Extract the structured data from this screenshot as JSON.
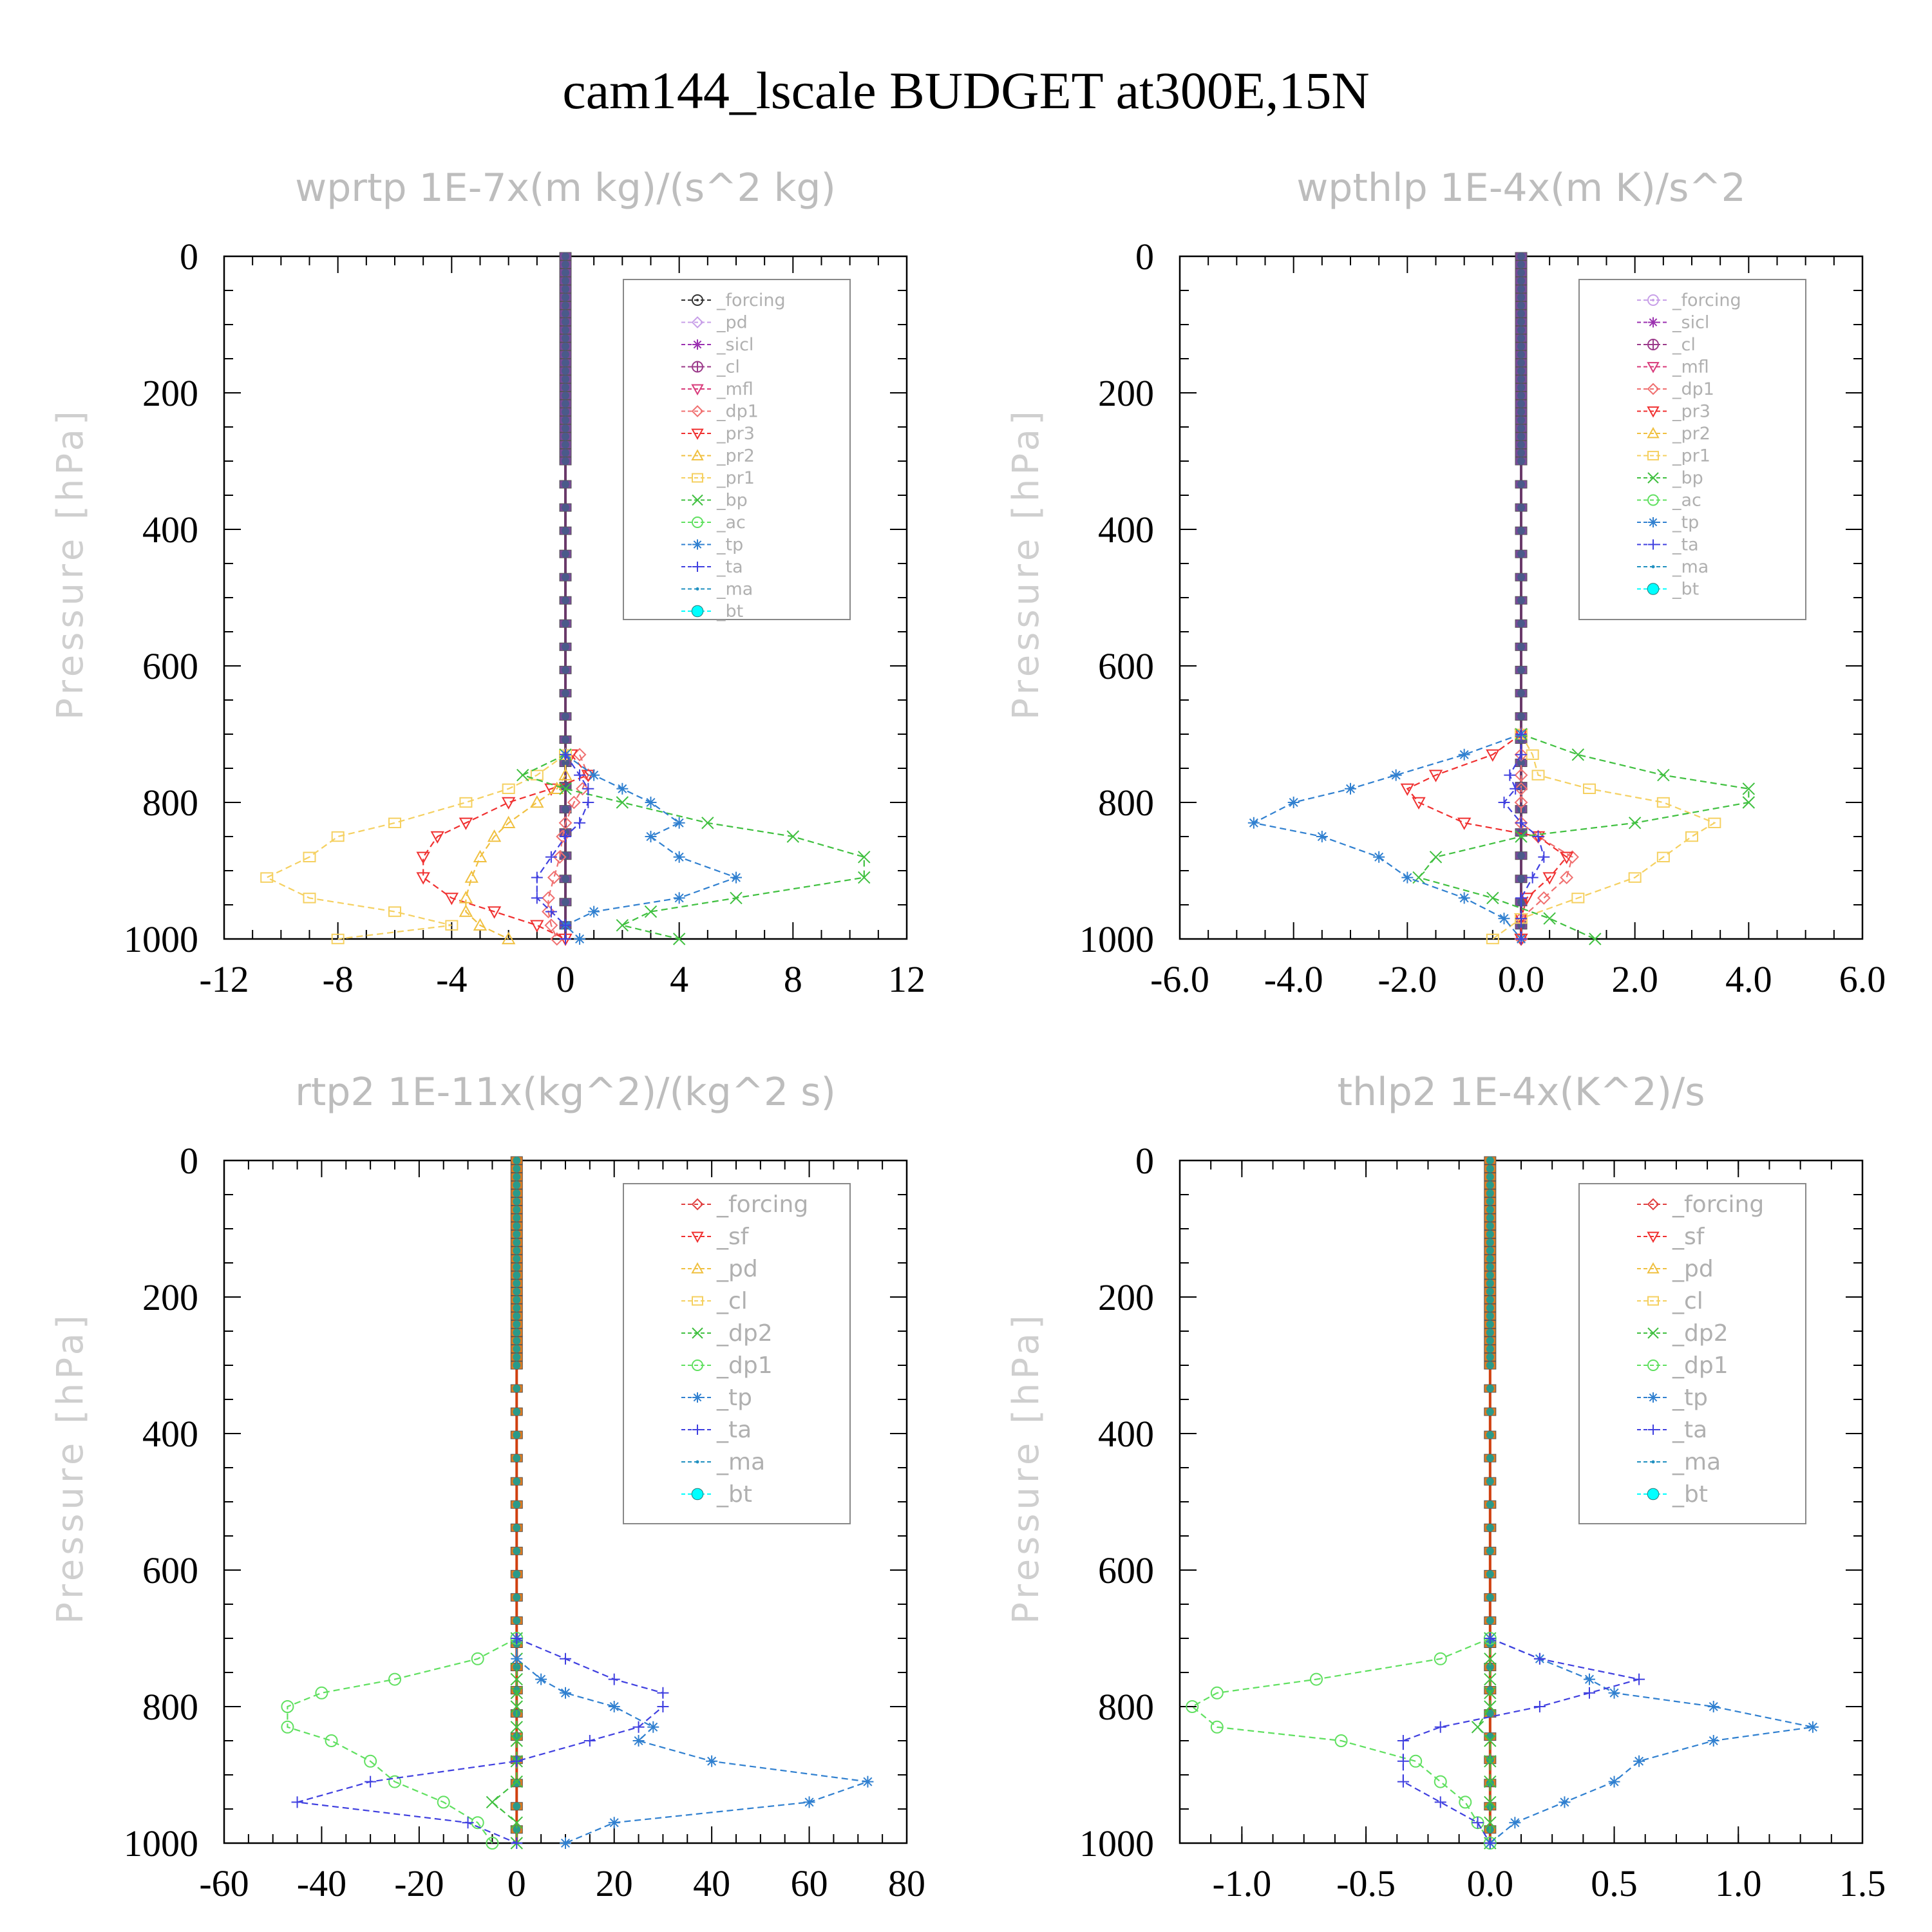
{
  "figure_title": "cam144_lscale  BUDGET at300E,15N",
  "chart_data": [
    {
      "type": "line",
      "title": "wprtp   1E-7x(m kg)/(s^2 kg)",
      "ylabel": "Pressure [hPa]",
      "xlim": [
        -12,
        12
      ],
      "ylim": [
        1000,
        0
      ],
      "y_inverted": true,
      "xticks": [
        "-12",
        "-8",
        "-4",
        "0",
        "4",
        "8",
        "12"
      ],
      "yticks": [
        "0",
        "200",
        "400",
        "600",
        "800",
        "1000"
      ],
      "grid": false,
      "legend_position": "top-right",
      "pressure": [
        730,
        760,
        780,
        800,
        830,
        850,
        880,
        910,
        940,
        960,
        980,
        1000
      ],
      "series": [
        {
          "name": "_forcing",
          "color": "#333333",
          "marker": "circle-dot",
          "values": [
            0,
            0,
            0,
            0,
            0,
            0,
            0,
            0,
            0,
            0,
            0,
            0
          ]
        },
        {
          "name": "_pd",
          "color": "#c8a0e8",
          "marker": "diamond",
          "values": [
            0,
            0,
            0,
            0,
            0,
            0,
            0,
            0,
            0,
            0,
            0,
            0
          ]
        },
        {
          "name": "_sicl",
          "color": "#9b30b0",
          "marker": "star",
          "values": [
            0,
            0,
            0,
            0,
            0,
            0,
            0,
            0,
            0,
            0,
            0,
            0
          ]
        },
        {
          "name": "_cl",
          "color": "#9b3a8a",
          "marker": "circle-plus",
          "values": [
            0,
            0,
            0,
            0,
            0,
            0,
            0,
            0,
            0,
            0,
            0,
            0
          ]
        },
        {
          "name": "_mfl",
          "color": "#d83a7a",
          "marker": "arrow",
          "values": [
            0,
            0,
            0,
            0,
            0,
            0,
            0,
            0,
            0,
            0,
            0,
            0
          ]
        },
        {
          "name": "_dp1",
          "color": "#f07070",
          "marker": "diamond",
          "values": [
            0.5,
            0.8,
            0.6,
            0.3,
            0,
            -0.1,
            -0.2,
            -0.4,
            -0.6,
            -0.6,
            -0.5,
            -0.3
          ]
        },
        {
          "name": "_pr3",
          "color": "#f03030",
          "marker": "triangle-down",
          "values": [
            0.2,
            0.8,
            -0.5,
            -2,
            -3.5,
            -4.5,
            -5,
            -5,
            -4,
            -2.5,
            -1,
            0
          ]
        },
        {
          "name": "_pr2",
          "color": "#f0c040",
          "marker": "triangle",
          "values": [
            0,
            0,
            -0.3,
            -1,
            -2,
            -2.5,
            -3,
            -3.3,
            -3.5,
            -3.5,
            -3,
            -2
          ]
        },
        {
          "name": "_pr1",
          "color": "#f5d060",
          "marker": "square",
          "values": [
            0,
            -1,
            -2,
            -3.5,
            -6,
            -8,
            -9,
            -10.5,
            -9,
            -6,
            -4,
            -8
          ]
        },
        {
          "name": "_bp",
          "color": "#40c040",
          "marker": "x",
          "values": [
            0,
            -1.5,
            0,
            2,
            5,
            8,
            10.5,
            10.5,
            6,
            3,
            2,
            4
          ]
        },
        {
          "name": "_ac",
          "color": "#60e060",
          "marker": "circle",
          "values": [
            0,
            0,
            0,
            0,
            0,
            0,
            0,
            0,
            0,
            0,
            0,
            0
          ]
        },
        {
          "name": "_tp",
          "color": "#3080d0",
          "marker": "asterisk",
          "values": [
            0,
            1,
            2,
            3,
            4,
            3,
            4,
            6,
            4,
            1,
            0,
            0.5
          ]
        },
        {
          "name": "_ta",
          "color": "#4040e0",
          "marker": "plus",
          "values": [
            0,
            0.5,
            0.8,
            0.8,
            0.5,
            0,
            -0.5,
            -1,
            -1,
            -0.5,
            0,
            0
          ]
        },
        {
          "name": "_ma",
          "color": "#2090c0",
          "marker": "dot",
          "values": [
            0,
            0,
            0,
            0,
            0,
            0,
            0,
            0,
            0,
            0,
            0,
            0
          ]
        },
        {
          "name": "_bt",
          "color": "#00ffff",
          "marker": "filled-circle",
          "values": [
            0,
            0,
            0,
            0,
            0,
            0,
            0,
            0,
            0,
            0,
            0,
            0
          ]
        }
      ]
    },
    {
      "type": "line",
      "title": "wpthlp   1E-4x(m K)/s^2",
      "ylabel": "Pressure [hPa]",
      "xlim": [
        -6,
        6
      ],
      "ylim": [
        1000,
        0
      ],
      "y_inverted": true,
      "xticks": [
        "-6.0",
        "-4.0",
        "-2.0",
        "0.0",
        "2.0",
        "4.0",
        "6.0"
      ],
      "yticks": [
        "0",
        "200",
        "400",
        "600",
        "800",
        "1000"
      ],
      "grid": false,
      "legend_position": "top-right",
      "pressure": [
        700,
        730,
        760,
        780,
        800,
        830,
        850,
        880,
        910,
        940,
        970,
        1000
      ],
      "series": [
        {
          "name": "_forcing",
          "color": "#c8a0e8",
          "marker": "circle-dot",
          "values": [
            0,
            0,
            0,
            0,
            0,
            0,
            0,
            0,
            0,
            0,
            0,
            0
          ]
        },
        {
          "name": "_sicl",
          "color": "#9b30b0",
          "marker": "star",
          "values": [
            0,
            0,
            0,
            0,
            0,
            0,
            0,
            0,
            0,
            0,
            0,
            0
          ]
        },
        {
          "name": "_cl",
          "color": "#9b3a8a",
          "marker": "circle-plus",
          "values": [
            0,
            0,
            0,
            0,
            0,
            0,
            0,
            0,
            0,
            0,
            0,
            0
          ]
        },
        {
          "name": "_mfl",
          "color": "#d83a7a",
          "marker": "arrow",
          "values": [
            0,
            0,
            0,
            0,
            0,
            0,
            0,
            0,
            0,
            0,
            0,
            0
          ]
        },
        {
          "name": "_dp1",
          "color": "#f07070",
          "marker": "diamond",
          "values": [
            0,
            0,
            0,
            0,
            0,
            0,
            0.3,
            0.9,
            0.8,
            0.4,
            0,
            0
          ]
        },
        {
          "name": "_pr3",
          "color": "#f03030",
          "marker": "triangle-down",
          "values": [
            0,
            -0.5,
            -1.5,
            -2,
            -1.8,
            -1,
            0.3,
            0.8,
            0.5,
            0.1,
            0,
            0
          ]
        },
        {
          "name": "_pr2",
          "color": "#f0c040",
          "marker": "triangle",
          "values": [
            0,
            0,
            0,
            0,
            0,
            0,
            0,
            0,
            0,
            0,
            0,
            0
          ]
        },
        {
          "name": "_pr1",
          "color": "#f5d060",
          "marker": "square",
          "values": [
            0,
            0.2,
            0.3,
            1.2,
            2.5,
            3.4,
            3,
            2.5,
            2,
            1,
            0,
            -0.5
          ]
        },
        {
          "name": "_bp",
          "color": "#40c040",
          "marker": "x",
          "values": [
            0,
            1,
            2.5,
            4,
            4,
            2,
            0,
            -1.5,
            -1.8,
            -0.5,
            0.5,
            1.3
          ]
        },
        {
          "name": "_ac",
          "color": "#60e060",
          "marker": "circle",
          "values": [
            0,
            0,
            0,
            0,
            0,
            0,
            0,
            0,
            0,
            0,
            0,
            0
          ]
        },
        {
          "name": "_tp",
          "color": "#3080d0",
          "marker": "asterisk",
          "values": [
            0,
            -1,
            -2.2,
            -3,
            -4,
            -4.7,
            -3.5,
            -2.5,
            -2,
            -1,
            -0.3,
            0
          ]
        },
        {
          "name": "_ta",
          "color": "#4040e0",
          "marker": "plus",
          "values": [
            0,
            0,
            -0.2,
            -0.1,
            -0.3,
            0,
            0.3,
            0.4,
            0.2,
            0,
            0,
            0
          ]
        },
        {
          "name": "_ma",
          "color": "#2090c0",
          "marker": "dot",
          "values": [
            0,
            0,
            0,
            0,
            0,
            0,
            0,
            0,
            0,
            0,
            0,
            0
          ]
        },
        {
          "name": "_bt",
          "color": "#00ffff",
          "marker": "filled-circle",
          "values": [
            0,
            0,
            0,
            0,
            0,
            0,
            0,
            0,
            0,
            0,
            0,
            0
          ]
        }
      ]
    },
    {
      "type": "line",
      "title": "rtp2   1E-11x(kg^2)/(kg^2 s)",
      "ylabel": "Pressure [hPa]",
      "xlim": [
        -60,
        80
      ],
      "ylim": [
        1000,
        0
      ],
      "y_inverted": true,
      "xticks": [
        "-60",
        "-40",
        "-20",
        "0",
        "20",
        "40",
        "60",
        "80"
      ],
      "yticks": [
        "0",
        "200",
        "400",
        "600",
        "800",
        "1000"
      ],
      "grid": false,
      "legend_position": "top-right",
      "pressure": [
        700,
        730,
        760,
        780,
        800,
        830,
        850,
        880,
        910,
        940,
        970,
        1000
      ],
      "series": [
        {
          "name": "_forcing",
          "color": "#e04040",
          "marker": "diamond",
          "values": [
            0,
            0,
            0,
            0,
            0,
            0,
            0,
            0,
            0,
            0,
            0,
            0
          ]
        },
        {
          "name": "_sf",
          "color": "#f03030",
          "marker": "triangle-down",
          "values": [
            0,
            0,
            0,
            0,
            0,
            0,
            0,
            0,
            0,
            0,
            0,
            0
          ]
        },
        {
          "name": "_pd",
          "color": "#f0c040",
          "marker": "triangle",
          "values": [
            0,
            0,
            0,
            0,
            0,
            0,
            0,
            0,
            0,
            0,
            0,
            0
          ]
        },
        {
          "name": "_cl",
          "color": "#f5d060",
          "marker": "square",
          "values": [
            0,
            0,
            0,
            0,
            0,
            0,
            0,
            0,
            0,
            0,
            0,
            0
          ]
        },
        {
          "name": "_dp2",
          "color": "#40c040",
          "marker": "x",
          "values": [
            0,
            0,
            0,
            0,
            0,
            0,
            0,
            0,
            0,
            -5,
            0,
            0
          ]
        },
        {
          "name": "_dp1",
          "color": "#60e060",
          "marker": "circle",
          "values": [
            0,
            -8,
            -25,
            -40,
            -47,
            -47,
            -38,
            -30,
            -25,
            -15,
            -8,
            -5
          ]
        },
        {
          "name": "_tp",
          "color": "#3080d0",
          "marker": "asterisk",
          "values": [
            0,
            0,
            5,
            10,
            20,
            28,
            25,
            40,
            72,
            60,
            20,
            10
          ]
        },
        {
          "name": "_ta",
          "color": "#4040e0",
          "marker": "plus",
          "values": [
            0,
            10,
            20,
            30,
            30,
            25,
            15,
            0,
            -30,
            -45,
            -10,
            0
          ]
        },
        {
          "name": "_ma",
          "color": "#2090c0",
          "marker": "dot",
          "values": [
            0,
            0,
            0,
            0,
            0,
            0,
            0,
            0,
            0,
            0,
            0,
            0
          ]
        },
        {
          "name": "_bt",
          "color": "#00ffff",
          "marker": "filled-circle",
          "values": [
            0,
            0,
            0,
            0,
            0,
            0,
            0,
            0,
            0,
            0,
            0,
            0
          ]
        }
      ]
    },
    {
      "type": "line",
      "title": "thlp2   1E-4x(K^2)/s",
      "ylabel": "Pressure [hPa]",
      "xlim": [
        -1.25,
        1.5
      ],
      "ylim": [
        1000,
        0
      ],
      "y_inverted": true,
      "xticks": [
        "-1.0",
        "-0.5",
        "0.0",
        "0.5",
        "1.0",
        "1.5"
      ],
      "yticks": [
        "0",
        "200",
        "400",
        "600",
        "800",
        "1000"
      ],
      "grid": false,
      "legend_position": "top-right",
      "pressure": [
        700,
        730,
        760,
        780,
        800,
        830,
        850,
        880,
        910,
        940,
        970,
        1000
      ],
      "series": [
        {
          "name": "_forcing",
          "color": "#e04040",
          "marker": "diamond",
          "values": [
            0,
            0,
            0,
            0,
            0,
            0,
            0,
            0,
            0,
            0,
            0,
            0
          ]
        },
        {
          "name": "_sf",
          "color": "#f03030",
          "marker": "triangle-down",
          "values": [
            0,
            0,
            0,
            0,
            0,
            0,
            0,
            0,
            0,
            0,
            0,
            0
          ]
        },
        {
          "name": "_pd",
          "color": "#f0c040",
          "marker": "triangle",
          "values": [
            0,
            0,
            0,
            0,
            0,
            0,
            0,
            0,
            0,
            0,
            0,
            0
          ]
        },
        {
          "name": "_cl",
          "color": "#f5d060",
          "marker": "square",
          "values": [
            0,
            0,
            0,
            0,
            0,
            0,
            0,
            0,
            0,
            0,
            0,
            0
          ]
        },
        {
          "name": "_dp2",
          "color": "#40c040",
          "marker": "x",
          "values": [
            0,
            0,
            0,
            0,
            0,
            -0.05,
            0,
            0,
            0,
            0,
            0,
            0
          ]
        },
        {
          "name": "_dp1",
          "color": "#60e060",
          "marker": "circle",
          "values": [
            0,
            -0.2,
            -0.7,
            -1.1,
            -1.2,
            -1.1,
            -0.6,
            -0.3,
            -0.2,
            -0.1,
            -0.05,
            0
          ]
        },
        {
          "name": "_tp",
          "color": "#3080d0",
          "marker": "asterisk",
          "values": [
            0,
            0.2,
            0.4,
            0.5,
            0.9,
            1.3,
            0.9,
            0.6,
            0.5,
            0.3,
            0.1,
            0
          ]
        },
        {
          "name": "_ta",
          "color": "#4040e0",
          "marker": "plus",
          "values": [
            0,
            0.2,
            0.6,
            0.4,
            0.2,
            -0.2,
            -0.35,
            -0.35,
            -0.35,
            -0.2,
            -0.05,
            0
          ]
        },
        {
          "name": "_ma",
          "color": "#2090c0",
          "marker": "dot",
          "values": [
            0,
            0,
            0,
            0,
            0,
            0,
            0,
            0,
            0,
            0,
            0,
            0
          ]
        },
        {
          "name": "_bt",
          "color": "#00ffff",
          "marker": "filled-circle",
          "values": [
            0,
            0,
            0,
            0,
            0,
            0,
            0,
            0,
            0,
            0,
            0,
            0
          ]
        }
      ]
    }
  ]
}
